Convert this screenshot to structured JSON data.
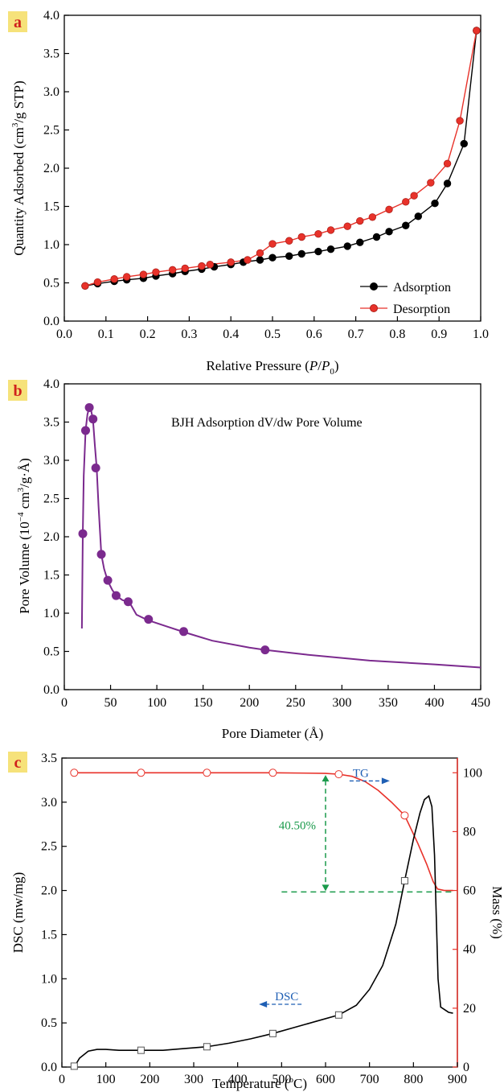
{
  "chart_data": [
    {
      "panel": "a",
      "type": "line",
      "xlabel": {
        "pre": "Relative Pressure (",
        "i1": "P",
        "mid": "/",
        "i2": "P",
        "sub": "0",
        "post": ")"
      },
      "ylabel": {
        "pre": "Quantity Adsorbed (cm",
        "sup": "3",
        "post": "/g STP)"
      },
      "xlim": [
        0.0,
        1.0
      ],
      "ylim": [
        0.0,
        4.0
      ],
      "xticks": [
        0.0,
        0.1,
        0.2,
        0.3,
        0.4,
        0.5,
        0.6,
        0.7,
        0.8,
        0.9,
        1.0
      ],
      "yticks": [
        0.0,
        0.5,
        1.0,
        1.5,
        2.0,
        2.5,
        3.0,
        3.5,
        4.0
      ],
      "legend_position": "bottom-right",
      "series": [
        {
          "name": "Adsorption",
          "color": "#000000",
          "x": [
            0.05,
            0.08,
            0.12,
            0.15,
            0.19,
            0.22,
            0.26,
            0.29,
            0.33,
            0.36,
            0.4,
            0.43,
            0.47,
            0.5,
            0.54,
            0.57,
            0.61,
            0.64,
            0.68,
            0.71,
            0.75,
            0.78,
            0.82,
            0.85,
            0.89,
            0.92,
            0.96,
            0.99
          ],
          "y": [
            0.46,
            0.49,
            0.52,
            0.54,
            0.56,
            0.59,
            0.62,
            0.65,
            0.68,
            0.71,
            0.74,
            0.77,
            0.8,
            0.83,
            0.85,
            0.88,
            0.91,
            0.94,
            0.98,
            1.03,
            1.1,
            1.17,
            1.25,
            1.37,
            1.54,
            1.8,
            2.32,
            3.8
          ]
        },
        {
          "name": "Desorption",
          "color": "#e8322a",
          "x": [
            0.05,
            0.08,
            0.12,
            0.15,
            0.19,
            0.22,
            0.26,
            0.29,
            0.33,
            0.35,
            0.4,
            0.44,
            0.47,
            0.5,
            0.54,
            0.57,
            0.61,
            0.64,
            0.68,
            0.71,
            0.74,
            0.78,
            0.82,
            0.84,
            0.88,
            0.92,
            0.95,
            0.99
          ],
          "y": [
            0.46,
            0.51,
            0.55,
            0.58,
            0.61,
            0.64,
            0.67,
            0.69,
            0.72,
            0.74,
            0.77,
            0.8,
            0.89,
            1.01,
            1.05,
            1.1,
            1.14,
            1.19,
            1.24,
            1.31,
            1.36,
            1.46,
            1.56,
            1.64,
            1.81,
            2.06,
            2.62,
            3.8
          ]
        }
      ]
    },
    {
      "panel": "b",
      "type": "line",
      "title": "BJH Adsorption dV/dw Pore Volume",
      "xlabel": {
        "text": "Pore Diameter (Å)"
      },
      "ylabel": {
        "pre": "Pore Volume (10",
        "sup": "−4",
        "mid": " cm",
        "sup2": "3",
        "post": "/g·Å)"
      },
      "xlim": [
        0,
        450
      ],
      "ylim": [
        0.0,
        4.0
      ],
      "xticks": [
        0,
        50,
        100,
        150,
        200,
        250,
        300,
        350,
        400,
        450
      ],
      "yticks": [
        0.0,
        0.5,
        1.0,
        1.5,
        2.0,
        2.5,
        3.0,
        3.5,
        4.0
      ],
      "series": [
        {
          "color": "#7b2a8e",
          "curve_x": [
            19,
            20,
            21,
            23,
            25,
            27,
            29,
            31,
            33,
            35,
            37,
            40,
            43,
            47,
            52,
            57,
            63,
            70,
            78,
            90,
            110,
            130,
            160,
            200,
            217,
            260,
            330,
            400,
            450
          ],
          "curve_y": [
            0.8,
            2.05,
            2.8,
            3.39,
            3.6,
            3.69,
            3.65,
            3.53,
            3.2,
            2.9,
            2.4,
            1.77,
            1.58,
            1.42,
            1.3,
            1.22,
            1.17,
            1.15,
            0.98,
            0.91,
            0.83,
            0.75,
            0.64,
            0.55,
            0.52,
            0.46,
            0.38,
            0.33,
            0.29
          ],
          "marker_x": [
            20,
            23,
            27,
            31,
            34,
            40,
            47,
            56,
            69,
            91,
            129,
            217
          ],
          "marker_y": [
            2.04,
            3.39,
            3.69,
            3.54,
            2.9,
            1.77,
            1.43,
            1.23,
            1.15,
            0.92,
            0.76,
            0.52
          ]
        }
      ]
    },
    {
      "panel": "c",
      "type": "line",
      "xlabel": {
        "pre": "Temperature (",
        "sup": "o",
        "post": "C)"
      },
      "ylabel_left": {
        "text": "DSC (mw/mg)"
      },
      "ylabel_right": {
        "text": "Mass (%)"
      },
      "xlim": [
        0,
        900
      ],
      "ylim_left": [
        0.0,
        3.5
      ],
      "ylim_right": [
        0,
        105
      ],
      "xticks": [
        0,
        100,
        200,
        300,
        400,
        500,
        600,
        700,
        800,
        900
      ],
      "yticks_left": [
        0.0,
        0.5,
        1.0,
        1.5,
        2.0,
        2.5,
        3.0,
        3.5
      ],
      "yticks_right": [
        0,
        20,
        40,
        60,
        80,
        100
      ],
      "series": [
        {
          "label": "DSC",
          "axis": "left",
          "color": "#000000",
          "curve_x": [
            28,
            40,
            60,
            80,
            100,
            130,
            180,
            230,
            280,
            330,
            380,
            430,
            480,
            530,
            580,
            630,
            670,
            700,
            730,
            760,
            780,
            800,
            815,
            825,
            835,
            842,
            848,
            852,
            856,
            862,
            880,
            890
          ],
          "curve_y": [
            0.0,
            0.1,
            0.18,
            0.2,
            0.2,
            0.19,
            0.19,
            0.19,
            0.21,
            0.23,
            0.27,
            0.32,
            0.38,
            0.45,
            0.52,
            0.59,
            0.7,
            0.88,
            1.15,
            1.62,
            2.11,
            2.58,
            2.88,
            3.03,
            3.07,
            2.95,
            2.4,
            1.7,
            1.0,
            0.68,
            0.62,
            0.61
          ],
          "marker_x": [
            28,
            180,
            330,
            480,
            630,
            780
          ],
          "marker_y": [
            0.01,
            0.19,
            0.23,
            0.38,
            0.59,
            2.11
          ]
        },
        {
          "label": "TG",
          "axis": "right",
          "color": "#e8322a",
          "curve_x": [
            28,
            180,
            330,
            480,
            600,
            630,
            660,
            690,
            720,
            750,
            780,
            810,
            830,
            845,
            855,
            870,
            890
          ],
          "curve_y": [
            100,
            100,
            100,
            100,
            99.8,
            99.5,
            98.8,
            97.0,
            94.0,
            90.0,
            85.5,
            76.0,
            69.0,
            63.0,
            60.5,
            60,
            60
          ],
          "marker_x": [
            28,
            180,
            330,
            480,
            630,
            780
          ],
          "marker_y": [
            100,
            100,
            100,
            100,
            99.5,
            85.5
          ]
        }
      ],
      "annotations": {
        "mass_loss": "40.50%",
        "mass_loss_color": "#1a9a4b",
        "mass_loss_x": 600,
        "mass_loss_from": 99.5,
        "mass_loss_to": 59.5,
        "guide_x_from": 500,
        "guide_x_to": 890,
        "tg_label": "TG",
        "tg_label_at": [
          640,
          97.5
        ],
        "dsc_label": "DSC",
        "dsc_label_at": [
          485,
          0.72
        ],
        "arrow_color": "#1f5fb4"
      }
    }
  ]
}
